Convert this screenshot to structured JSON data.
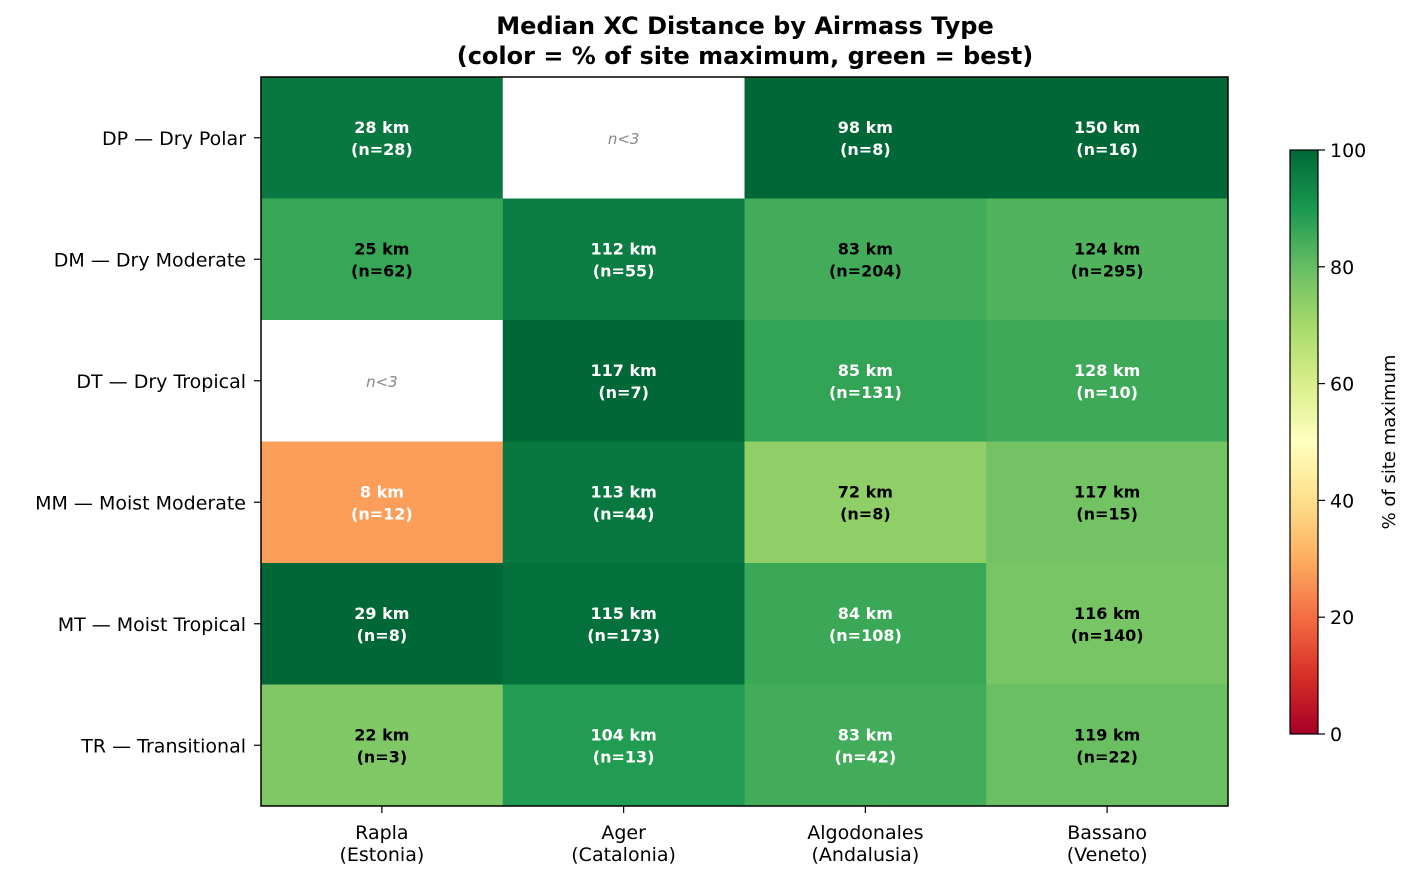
{
  "chart_data": {
    "type": "heatmap",
    "title": [
      "Median XC Distance by Airmass Type",
      "(color = % of site maximum, green = best)"
    ],
    "columns": [
      "Rapla\n(Estonia)",
      "Ager\n(Catalonia)",
      "Algodonales\n(Andalusia)",
      "Bassano\n(Veneto)"
    ],
    "rows": [
      "DP — Dry Polar",
      "DM — Dry Moderate",
      "DT — Dry Tropical",
      "MM — Moist Moderate",
      "MT — Moist Tropical",
      "TR — Transitional"
    ],
    "missing_label": "n<3",
    "colormap": "RdYlGn",
    "colorbar": {
      "label": "% of site maximum",
      "range": [
        0,
        100
      ],
      "ticks": [
        "0",
        "20",
        "40",
        "60",
        "80",
        "100"
      ]
    },
    "cells": [
      [
        {
          "km": 28,
          "n": 28,
          "text": [
            "28 km",
            "(n=28)"
          ],
          "pct": 96.6,
          "text_color": "#ffffff"
        },
        null,
        {
          "km": 98,
          "n": 8,
          "text": [
            "98 km",
            "(n=8)"
          ],
          "pct": 100,
          "text_color": "#ffffff"
        },
        {
          "km": 150,
          "n": 16,
          "text": [
            "150 km",
            "(n=16)"
          ],
          "pct": 100,
          "text_color": "#ffffff"
        }
      ],
      [
        {
          "km": 25,
          "n": 62,
          "text": [
            "25 km",
            "(n=62)"
          ],
          "pct": 86.2,
          "text_color": "#000000"
        },
        {
          "km": 112,
          "n": 55,
          "text": [
            "112 km",
            "(n=55)"
          ],
          "pct": 95.7,
          "text_color": "#ffffff"
        },
        {
          "km": 83,
          "n": 204,
          "text": [
            "83 km",
            "(n=204)"
          ],
          "pct": 84.7,
          "text_color": "#000000"
        },
        {
          "km": 124,
          "n": 295,
          "text": [
            "124 km",
            "(n=295)"
          ],
          "pct": 82.7,
          "text_color": "#000000"
        }
      ],
      [
        null,
        {
          "km": 117,
          "n": 7,
          "text": [
            "117 km",
            "(n=7)"
          ],
          "pct": 100,
          "text_color": "#ffffff"
        },
        {
          "km": 85,
          "n": 131,
          "text": [
            "85 km",
            "(n=131)"
          ],
          "pct": 86.7,
          "text_color": "#ffffff"
        },
        {
          "km": 128,
          "n": 10,
          "text": [
            "128 km",
            "(n=10)"
          ],
          "pct": 85.3,
          "text_color": "#ffffff"
        }
      ],
      [
        {
          "km": 8,
          "n": 12,
          "text": [
            "8 km",
            "(n=12)"
          ],
          "pct": 27.6,
          "text_color": "#ffffff"
        },
        {
          "km": 113,
          "n": 44,
          "text": [
            "113 km",
            "(n=44)"
          ],
          "pct": 96.6,
          "text_color": "#ffffff"
        },
        {
          "km": 72,
          "n": 8,
          "text": [
            "72 km",
            "(n=8)"
          ],
          "pct": 73.5,
          "text_color": "#000000"
        },
        {
          "km": 117,
          "n": 15,
          "text": [
            "117 km",
            "(n=15)"
          ],
          "pct": 78.0,
          "text_color": "#000000"
        }
      ],
      [
        {
          "km": 29,
          "n": 8,
          "text": [
            "29 km",
            "(n=8)"
          ],
          "pct": 100,
          "text_color": "#ffffff"
        },
        {
          "km": 115,
          "n": 173,
          "text": [
            "115 km",
            "(n=173)"
          ],
          "pct": 98.3,
          "text_color": "#ffffff"
        },
        {
          "km": 84,
          "n": 108,
          "text": [
            "84 km",
            "(n=108)"
          ],
          "pct": 85.7,
          "text_color": "#ffffff"
        },
        {
          "km": 116,
          "n": 140,
          "text": [
            "116 km",
            "(n=140)"
          ],
          "pct": 77.3,
          "text_color": "#000000"
        }
      ],
      [
        {
          "km": 22,
          "n": 3,
          "text": [
            "22 km",
            "(n=3)"
          ],
          "pct": 75.9,
          "text_color": "#000000"
        },
        {
          "km": 104,
          "n": 13,
          "text": [
            "104 km",
            "(n=13)"
          ],
          "pct": 88.9,
          "text_color": "#ffffff"
        },
        {
          "km": 83,
          "n": 42,
          "text": [
            "83 km",
            "(n=42)"
          ],
          "pct": 84.7,
          "text_color": "#ffffff"
        },
        {
          "km": 119,
          "n": 22,
          "text": [
            "119 km",
            "(n=22)"
          ],
          "pct": 79.3,
          "text_color": "#000000"
        }
      ]
    ]
  }
}
